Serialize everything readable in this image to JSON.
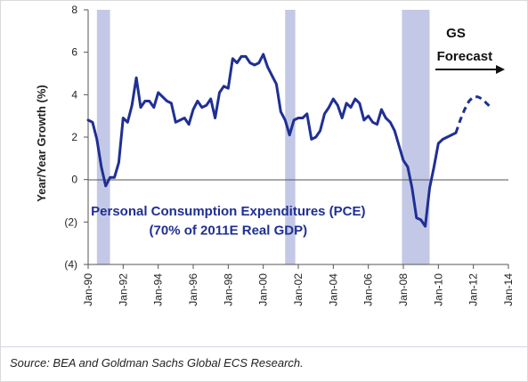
{
  "chart_data": {
    "type": "line",
    "title": "",
    "xlabel": "",
    "ylabel": "Year/Year Growth (%)",
    "ylim": [
      -4,
      8
    ],
    "yticks": [
      -4,
      -2,
      0,
      2,
      4,
      6,
      8
    ],
    "ytick_labels": [
      "(4)",
      "(2)",
      "0",
      "2",
      "4",
      "6",
      "8"
    ],
    "xlim": [
      1990.0,
      2014.0
    ],
    "xtick_labels": [
      "Jan-90",
      "Jan-92",
      "Jan-94",
      "Jan-96",
      "Jan-98",
      "Jan-00",
      "Jan-02",
      "Jan-04",
      "Jan-06",
      "Jan-08",
      "Jan-10",
      "Jan-12",
      "Jan-14"
    ],
    "recessions": [
      {
        "start": 1990.5,
        "end": 1991.25
      },
      {
        "start": 2001.25,
        "end": 2001.83
      },
      {
        "start": 2007.92,
        "end": 2009.5
      }
    ],
    "series": [
      {
        "style": "solid",
        "color": "#1f2f94",
        "x": [
          1990.0,
          1990.25,
          1990.5,
          1990.75,
          1991.0,
          1991.25,
          1991.5,
          1991.75,
          1992.0,
          1992.25,
          1992.5,
          1992.75,
          1993.0,
          1993.25,
          1993.5,
          1993.75,
          1994.0,
          1994.25,
          1994.5,
          1994.75,
          1995.0,
          1995.25,
          1995.5,
          1995.75,
          1996.0,
          1996.25,
          1996.5,
          1996.75,
          1997.0,
          1997.25,
          1997.5,
          1997.75,
          1998.0,
          1998.25,
          1998.5,
          1998.75,
          1999.0,
          1999.25,
          1999.5,
          1999.75,
          2000.0,
          2000.25,
          2000.5,
          2000.75,
          2001.0,
          2001.25,
          2001.5,
          2001.75,
          2002.0,
          2002.25,
          2002.5,
          2002.75,
          2003.0,
          2003.25,
          2003.5,
          2003.75,
          2004.0,
          2004.25,
          2004.5,
          2004.75,
          2005.0,
          2005.25,
          2005.5,
          2005.75,
          2006.0,
          2006.25,
          2006.5,
          2006.75,
          2007.0,
          2007.25,
          2007.5,
          2007.75,
          2008.0,
          2008.25,
          2008.5,
          2008.75,
          2009.0,
          2009.25,
          2009.5,
          2009.75,
          2010.0,
          2010.25,
          2010.5,
          2010.75,
          2011.0
        ],
        "values": [
          2.8,
          2.7,
          1.9,
          0.6,
          -0.3,
          0.1,
          0.1,
          0.8,
          2.9,
          2.7,
          3.5,
          4.8,
          3.4,
          3.7,
          3.7,
          3.4,
          4.1,
          3.9,
          3.7,
          3.6,
          2.7,
          2.8,
          2.9,
          2.6,
          3.3,
          3.7,
          3.4,
          3.5,
          3.8,
          2.9,
          4.1,
          4.4,
          4.3,
          5.7,
          5.5,
          5.8,
          5.8,
          5.5,
          5.4,
          5.5,
          5.9,
          5.3,
          4.9,
          4.5,
          3.2,
          2.8,
          2.1,
          2.8,
          2.9,
          2.9,
          3.1,
          1.9,
          2.0,
          2.3,
          3.1,
          3.4,
          3.8,
          3.5,
          2.9,
          3.6,
          3.4,
          3.8,
          3.6,
          2.8,
          3.0,
          2.7,
          2.6,
          3.3,
          2.9,
          2.7,
          2.3,
          1.6,
          0.9,
          0.6,
          -0.4,
          -1.8,
          -1.9,
          -2.2,
          -0.4,
          0.6,
          1.7,
          1.9,
          2.0,
          2.1,
          2.2
        ]
      },
      {
        "style": "dashed",
        "color": "#1f2f94",
        "x": [
          2011.0,
          2011.25,
          2011.5,
          2011.75,
          2012.0,
          2012.25,
          2012.5,
          2012.75,
          2013.0
        ],
        "values": [
          2.2,
          2.8,
          3.3,
          3.7,
          3.9,
          3.9,
          3.8,
          3.6,
          3.4
        ]
      }
    ],
    "annotations": [
      {
        "text": "Personal Consumption Expenditures (PCE)",
        "x": 1998.0,
        "y": -1.7
      },
      {
        "text": "(70% of 2011E Real GDP)",
        "x": 1998.0,
        "y": -2.6
      },
      {
        "text": "GS",
        "x": 2011.0,
        "y": 6.7
      },
      {
        "text": "Forecast",
        "x": 2011.5,
        "y": 5.6
      }
    ]
  },
  "footer": {
    "source": "Source: BEA and Goldman Sachs Global ECS Research."
  }
}
